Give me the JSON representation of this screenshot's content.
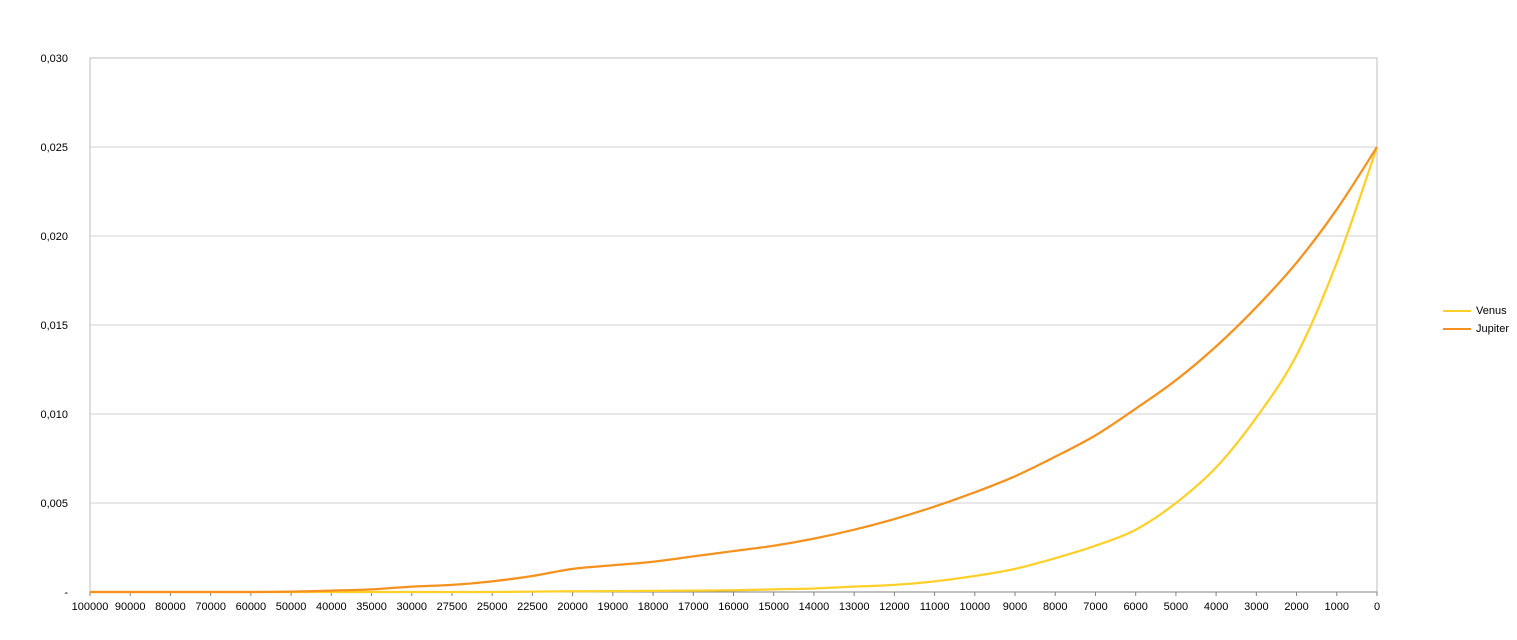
{
  "chart_data": {
    "type": "line",
    "title": "",
    "xlabel": "",
    "ylabel": "",
    "x_categories": [
      "100000",
      "90000",
      "80000",
      "70000",
      "60000",
      "50000",
      "40000",
      "35000",
      "30000",
      "27500",
      "25000",
      "22500",
      "20000",
      "19000",
      "18000",
      "17000",
      "16000",
      "15000",
      "14000",
      "13000",
      "12000",
      "11000",
      "10000",
      "9000",
      "8000",
      "7000",
      "6000",
      "5000",
      "4000",
      "3000",
      "2000",
      "1000",
      "0"
    ],
    "y_ticks": [
      {
        "value": 0,
        "label": "-"
      },
      {
        "value": 0.005,
        "label": "0,005"
      },
      {
        "value": 0.01,
        "label": "0,010"
      },
      {
        "value": 0.015,
        "label": "0,015"
      },
      {
        "value": 0.02,
        "label": "0,020"
      },
      {
        "value": 0.025,
        "label": "0,025"
      },
      {
        "value": 0.03,
        "label": "0,030"
      }
    ],
    "ylim": [
      0,
      0.03
    ],
    "grid": true,
    "legend_position": "right",
    "series": [
      {
        "name": "Venus",
        "color": "#FFD02A",
        "values": [
          0,
          0,
          0,
          0,
          0,
          0,
          0,
          0,
          0,
          0,
          0,
          2e-05,
          4e-05,
          5e-05,
          6e-05,
          8e-05,
          0.0001,
          0.00015,
          0.0002,
          0.0003,
          0.0004,
          0.0006,
          0.0009,
          0.0013,
          0.0019,
          0.0026,
          0.0035,
          0.005,
          0.007,
          0.0098,
          0.0133,
          0.0185,
          0.025
        ]
      },
      {
        "name": "Jupiter",
        "color": "#F5921E",
        "values": [
          0,
          0,
          0,
          0,
          0,
          2e-05,
          8e-05,
          0.00015,
          0.0003,
          0.0004,
          0.0006,
          0.0009,
          0.0013,
          0.0015,
          0.0017,
          0.002,
          0.0023,
          0.0026,
          0.003,
          0.0035,
          0.0041,
          0.0048,
          0.0056,
          0.0065,
          0.0076,
          0.0088,
          0.0103,
          0.0119,
          0.0138,
          0.016,
          0.0185,
          0.0215,
          0.025
        ]
      }
    ]
  }
}
